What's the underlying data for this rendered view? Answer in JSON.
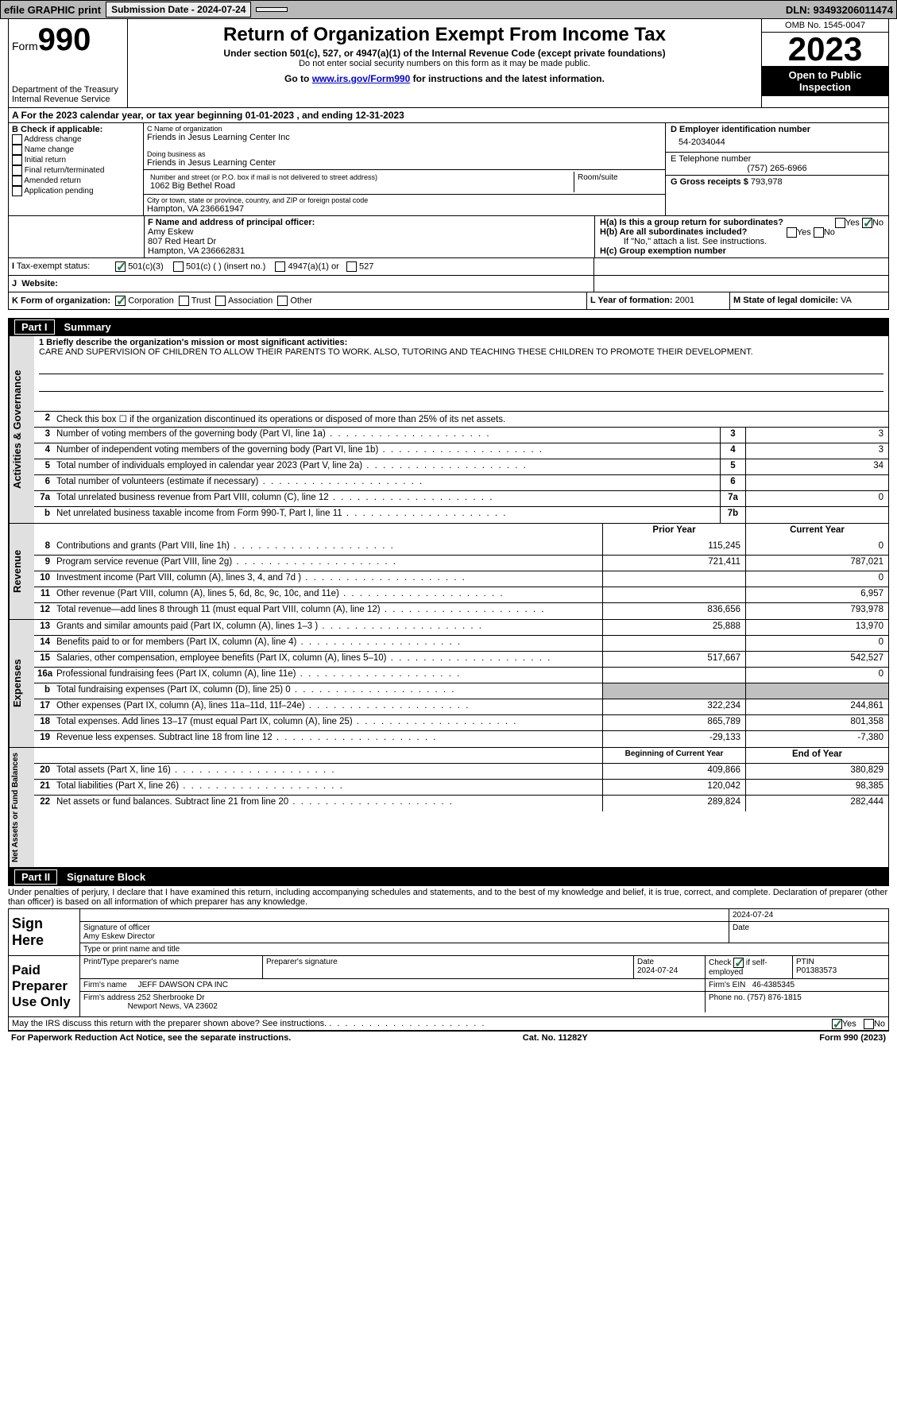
{
  "topbar": {
    "efile": "efile GRAPHIC print",
    "submission": "Submission Date - 2024-07-24",
    "dln": "DLN: 93493206011474"
  },
  "header": {
    "form_label": "Form",
    "form_num": "990",
    "dept": "Department of the Treasury\nInternal Revenue Service",
    "title": "Return of Organization Exempt From Income Tax",
    "sub1": "Under section 501(c), 527, or 4947(a)(1) of the Internal Revenue Code (except private foundations)",
    "sub2": "Do not enter social security numbers on this form as it may be made public.",
    "sub3_pre": "Go to ",
    "sub3_link": "www.irs.gov/Form990",
    "sub3_post": " for instructions and the latest information.",
    "omb": "OMB No. 1545-0047",
    "year": "2023",
    "inspect": "Open to Public Inspection"
  },
  "row_a": "A For the 2023 calendar year, or tax year beginning 01-01-2023   , and ending 12-31-2023",
  "col_b": {
    "label": "B Check if applicable:",
    "opts": [
      "Address change",
      "Name change",
      "Initial return",
      "Final return/terminated",
      "Amended return",
      "Application pending"
    ]
  },
  "col_c": {
    "name_lbl": "C Name of organization",
    "name": "Friends in Jesus Learning Center Inc",
    "dba_lbl": "Doing business as",
    "dba": "Friends in Jesus Learning Center",
    "addr_lbl": "Number and street (or P.O. box if mail is not delivered to street address)",
    "addr": "1062 Big Bethel Road",
    "room_lbl": "Room/suite",
    "city_lbl": "City or town, state or province, country, and ZIP or foreign postal code",
    "city": "Hampton, VA  236661947"
  },
  "col_d": {
    "ein_lbl": "D Employer identification number",
    "ein": "54-2034044",
    "phone_lbl": "E Telephone number",
    "phone": "(757) 265-6966",
    "gross_lbl": "G Gross receipts $",
    "gross": "793,978"
  },
  "row_f": {
    "f_lbl": "F  Name and address of principal officer:",
    "f_name": "Amy Eskew",
    "f_addr1": "807 Red Heart Dr",
    "f_addr2": "Hampton, VA  236662831",
    "ha": "H(a)  Is this a group return for subordinates?",
    "hb": "H(b)  Are all subordinates included?",
    "hb_note": "If \"No,\" attach a list. See instructions.",
    "hc": "H(c)  Group exemption number"
  },
  "row_i": {
    "i_lbl": "Tax-exempt status:",
    "j_lbl": "Website:",
    "opts": [
      "501(c)(3)",
      "501(c) (  ) (insert no.)",
      "4947(a)(1) or",
      "527"
    ]
  },
  "row_k": {
    "k_lbl": "K Form of organization:",
    "opts": [
      "Corporation",
      "Trust",
      "Association",
      "Other"
    ],
    "l_lbl": "L Year of formation:",
    "l_val": "2001",
    "m_lbl": "M State of legal domicile:",
    "m_val": "VA"
  },
  "part1": {
    "title": "Part I",
    "name": "Summary"
  },
  "mission": {
    "lbl": "1   Briefly describe the organization's mission or most significant activities:",
    "text": "CARE AND SUPERVISION OF CHILDREN TO ALLOW THEIR PARENTS TO WORK. ALSO, TUTORING AND TEACHING THESE CHILDREN TO PROMOTE THEIR DEVELOPMENT."
  },
  "gov_lines": [
    {
      "n": "2",
      "d": "Check this box ☐ if the organization discontinued its operations or disposed of more than 25% of its net assets."
    },
    {
      "n": "3",
      "d": "Number of voting members of the governing body (Part VI, line 1a)",
      "box": "3",
      "v": "3"
    },
    {
      "n": "4",
      "d": "Number of independent voting members of the governing body (Part VI, line 1b)",
      "box": "4",
      "v": "3"
    },
    {
      "n": "5",
      "d": "Total number of individuals employed in calendar year 2023 (Part V, line 2a)",
      "box": "5",
      "v": "34"
    },
    {
      "n": "6",
      "d": "Total number of volunteers (estimate if necessary)",
      "box": "6",
      "v": ""
    },
    {
      "n": "7a",
      "d": "Total unrelated business revenue from Part VIII, column (C), line 12",
      "box": "7a",
      "v": "0"
    },
    {
      "n": "b",
      "d": "Net unrelated business taxable income from Form 990-T, Part I, line 11",
      "box": "7b",
      "v": ""
    }
  ],
  "rev_hdr": {
    "py": "Prior Year",
    "cy": "Current Year"
  },
  "rev_lines": [
    {
      "n": "8",
      "d": "Contributions and grants (Part VIII, line 1h)",
      "py": "115,245",
      "cy": "0"
    },
    {
      "n": "9",
      "d": "Program service revenue (Part VIII, line 2g)",
      "py": "721,411",
      "cy": "787,021"
    },
    {
      "n": "10",
      "d": "Investment income (Part VIII, column (A), lines 3, 4, and 7d )",
      "py": "",
      "cy": "0"
    },
    {
      "n": "11",
      "d": "Other revenue (Part VIII, column (A), lines 5, 6d, 8c, 9c, 10c, and 11e)",
      "py": "",
      "cy": "6,957"
    },
    {
      "n": "12",
      "d": "Total revenue—add lines 8 through 11 (must equal Part VIII, column (A), line 12)",
      "py": "836,656",
      "cy": "793,978"
    }
  ],
  "exp_lines": [
    {
      "n": "13",
      "d": "Grants and similar amounts paid (Part IX, column (A), lines 1–3 )",
      "py": "25,888",
      "cy": "13,970"
    },
    {
      "n": "14",
      "d": "Benefits paid to or for members (Part IX, column (A), line 4)",
      "py": "",
      "cy": "0"
    },
    {
      "n": "15",
      "d": "Salaries, other compensation, employee benefits (Part IX, column (A), lines 5–10)",
      "py": "517,667",
      "cy": "542,527"
    },
    {
      "n": "16a",
      "d": "Professional fundraising fees (Part IX, column (A), line 11e)",
      "py": "",
      "cy": "0"
    },
    {
      "n": "b",
      "d": "Total fundraising expenses (Part IX, column (D), line 25) 0",
      "py": "grey",
      "cy": "grey"
    },
    {
      "n": "17",
      "d": "Other expenses (Part IX, column (A), lines 11a–11d, 11f–24e)",
      "py": "322,234",
      "cy": "244,861"
    },
    {
      "n": "18",
      "d": "Total expenses. Add lines 13–17 (must equal Part IX, column (A), line 25)",
      "py": "865,789",
      "cy": "801,358"
    },
    {
      "n": "19",
      "d": "Revenue less expenses. Subtract line 18 from line 12",
      "py": "-29,133",
      "cy": "-7,380"
    }
  ],
  "net_hdr": {
    "py": "Beginning of Current Year",
    "cy": "End of Year"
  },
  "net_lines": [
    {
      "n": "20",
      "d": "Total assets (Part X, line 16)",
      "py": "409,866",
      "cy": "380,829"
    },
    {
      "n": "21",
      "d": "Total liabilities (Part X, line 26)",
      "py": "120,042",
      "cy": "98,385"
    },
    {
      "n": "22",
      "d": "Net assets or fund balances. Subtract line 21 from line 20",
      "py": "289,824",
      "cy": "282,444"
    }
  ],
  "part2": {
    "title": "Part II",
    "name": "Signature Block"
  },
  "penalty": "Under penalties of perjury, I declare that I have examined this return, including accompanying schedules and statements, and to the best of my knowledge and belief, it is true, correct, and complete. Declaration of preparer (other than officer) is based on all information of which preparer has any knowledge.",
  "sign": {
    "here": "Sign Here",
    "sig_lbl": "Signature of officer",
    "name": "Amy Eskew  Director",
    "name_lbl": "Type or print name and title",
    "date": "2024-07-24",
    "date_lbl": "Date"
  },
  "paid": {
    "label": "Paid Preparer Use Only",
    "prep_lbl": "Print/Type preparer's name",
    "sig_lbl": "Preparer's signature",
    "date_lbl": "Date",
    "date": "2024-07-24",
    "check_lbl": "Check ☑ if self-employed",
    "ptin_lbl": "PTIN",
    "ptin": "P01383573",
    "firm_lbl": "Firm's name",
    "firm": "JEFF DAWSON CPA INC",
    "ein_lbl": "Firm's EIN",
    "ein": "46-4385345",
    "addr_lbl": "Firm's address",
    "addr1": "252 Sherbrooke Dr",
    "addr2": "Newport News, VA  23602",
    "phone_lbl": "Phone no.",
    "phone": "(757) 876-1815"
  },
  "discuss": "May the IRS discuss this return with the preparer shown above? See instructions.",
  "footer": {
    "pra": "For Paperwork Reduction Act Notice, see the separate instructions.",
    "cat": "Cat. No. 11282Y",
    "form": "Form 990 (2023)"
  },
  "vtabs": {
    "gov": "Activities & Governance",
    "rev": "Revenue",
    "exp": "Expenses",
    "net": "Net Assets or Fund Balances"
  },
  "yes": "Yes",
  "no": "No"
}
